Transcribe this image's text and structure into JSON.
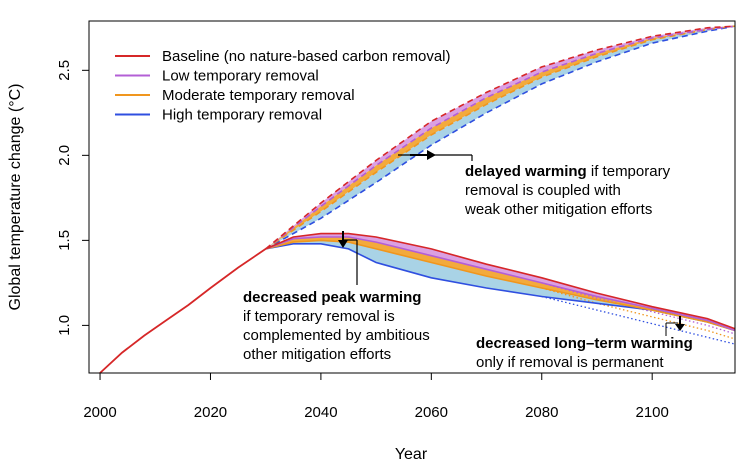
{
  "chart_data": {
    "type": "line",
    "xlabel": "Year",
    "ylabel": "Global temperature change (°C)",
    "xlim": [
      1998,
      2115
    ],
    "ylim": [
      0.72,
      2.79
    ],
    "x_ticks": [
      2000,
      2020,
      2040,
      2060,
      2080,
      2100
    ],
    "y_ticks": [
      1.0,
      1.5,
      2.0,
      2.5
    ],
    "legend": {
      "position": "top-left",
      "entries": [
        {
          "label": "Baseline (no nature-based carbon removal)",
          "color": "#d62728"
        },
        {
          "label": "Low temporary removal",
          "color": "#b35fd6"
        },
        {
          "label": "Moderate temporary removal",
          "color": "#f0961e"
        },
        {
          "label": "High temporary removal",
          "color": "#2f4fe0"
        }
      ]
    },
    "colors": {
      "baseline": "#d62728",
      "low": "#b35fd6",
      "moderate": "#f0961e",
      "high": "#2f4fe0",
      "fill_outer": "#dba0e2",
      "fill_mid": "#f3aa3c",
      "fill_inner": "#a9d3e6"
    },
    "historical": {
      "x": [
        2000,
        2004,
        2008,
        2012,
        2016,
        2020,
        2025,
        2030
      ],
      "y": [
        0.72,
        0.84,
        0.94,
        1.03,
        1.12,
        1.22,
        1.34,
        1.45
      ]
    },
    "weak_mitigation": {
      "x": [
        2030,
        2040,
        2050,
        2060,
        2070,
        2080,
        2090,
        2100,
        2110,
        2115
      ],
      "series": [
        {
          "name": "Baseline (no nature-based carbon removal)",
          "values": [
            1.45,
            1.72,
            1.97,
            2.2,
            2.37,
            2.52,
            2.62,
            2.7,
            2.75,
            2.76
          ]
        },
        {
          "name": "Low temporary removal",
          "values": [
            1.45,
            1.7,
            1.94,
            2.16,
            2.34,
            2.49,
            2.6,
            2.69,
            2.74,
            2.76
          ]
        },
        {
          "name": "Moderate temporary removal",
          "values": [
            1.45,
            1.67,
            1.9,
            2.12,
            2.3,
            2.46,
            2.58,
            2.68,
            2.74,
            2.76
          ]
        },
        {
          "name": "High temporary removal",
          "values": [
            1.45,
            1.63,
            1.84,
            2.06,
            2.25,
            2.42,
            2.55,
            2.66,
            2.73,
            2.76
          ]
        }
      ]
    },
    "ambitious_mitigation": {
      "x": [
        2030,
        2035,
        2040,
        2045,
        2050,
        2060,
        2070,
        2080,
        2090,
        2100,
        2110,
        2115
      ],
      "series": [
        {
          "name": "Baseline (no nature-based carbon removal)",
          "values": [
            1.45,
            1.52,
            1.54,
            1.54,
            1.52,
            1.45,
            1.36,
            1.28,
            1.19,
            1.11,
            1.04,
            0.98
          ]
        },
        {
          "name": "Low temporary removal",
          "values": [
            1.45,
            1.51,
            1.52,
            1.52,
            1.49,
            1.41,
            1.33,
            1.25,
            1.17,
            1.1,
            1.03,
            0.97
          ]
        },
        {
          "name": "Moderate temporary removal",
          "values": [
            1.45,
            1.49,
            1.5,
            1.49,
            1.45,
            1.37,
            1.29,
            1.22,
            1.15,
            1.09,
            1.02,
            0.97
          ]
        },
        {
          "name": "High temporary removal",
          "values": [
            1.45,
            1.48,
            1.48,
            1.45,
            1.37,
            1.28,
            1.22,
            1.17,
            1.13,
            1.09,
            1.02,
            0.97
          ]
        }
      ]
    },
    "permanent_removal_dotted": {
      "x": [
        2080,
        2090,
        2100,
        2110,
        2115
      ],
      "series": [
        {
          "name": "Low temporary removal",
          "values": [
            1.25,
            1.16,
            1.08,
            1.0,
            0.95
          ]
        },
        {
          "name": "Moderate temporary removal",
          "values": [
            1.22,
            1.13,
            1.05,
            0.97,
            0.92
          ]
        },
        {
          "name": "High temporary removal",
          "values": [
            1.17,
            1.09,
            1.01,
            0.93,
            0.89
          ]
        }
      ]
    },
    "annotations": [
      {
        "bold": "delayed warming",
        "lines": [
          " if temporary",
          "removal is coupled with",
          "weak other mitigation efforts"
        ]
      },
      {
        "bold": "decreased peak warming",
        "lines": [
          "if temporary removal is",
          "complemented by ambitious",
          "other mitigation efforts"
        ]
      },
      {
        "bold": "decreased long–term warming",
        "lines": [
          "only if removal is permanent"
        ]
      }
    ]
  }
}
